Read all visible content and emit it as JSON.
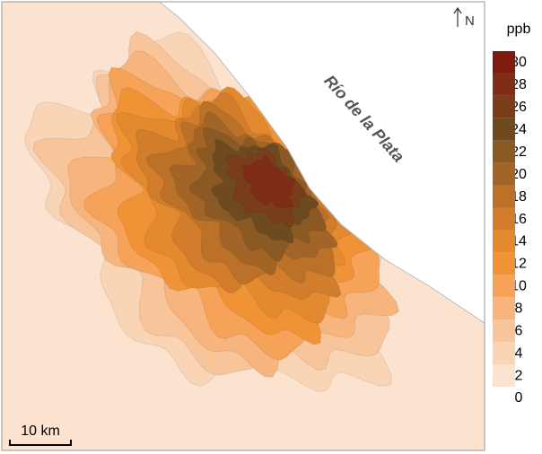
{
  "map": {
    "north": "N",
    "label": "Río de la Plata",
    "scale_bar": "10 km",
    "legend": {
      "title": "ppb",
      "ticks": [
        0,
        2,
        4,
        6,
        8,
        10,
        12,
        14,
        16,
        18,
        20,
        22,
        24,
        26,
        28,
        30
      ],
      "colors": [
        "#fbe3d0",
        "#f9d4b5",
        "#f8c59a",
        "#f7b47c",
        "#f6a258",
        "#ef9336",
        "#e3892f",
        "#d17d2b",
        "#bb7128",
        "#a36527",
        "#8b5a24",
        "#6e4a20",
        "#7a3d1c",
        "#7f2d17",
        "#801a0f"
      ]
    }
  }
}
